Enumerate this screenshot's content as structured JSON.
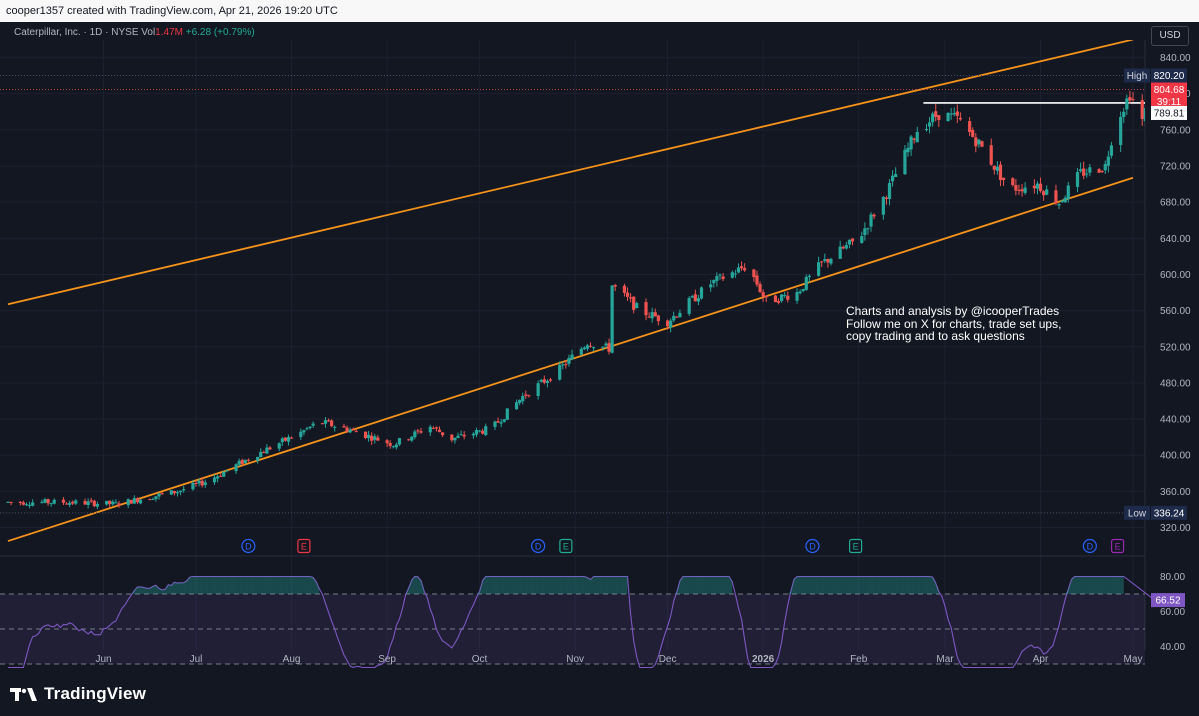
{
  "header": {
    "caption": "cooper1357 created with TradingView.com, Apr 21, 2026 19:20 UTC"
  },
  "legend": {
    "symbol": "Caterpillar, Inc. · 1D · NYSE",
    "vol_label": "Vol",
    "vol_value": "1.47M",
    "change": "+6.28 (+0.79%)"
  },
  "currency_button": "USD",
  "annotation": {
    "line1": "Charts and analysis by @icooperTrades",
    "line2": "Follow me on X for charts, trade set ups,",
    "line3": "copy trading and to ask questions"
  },
  "footer": {
    "brand": "TradingView"
  },
  "colors": {
    "up": "#26a69a",
    "down": "#ef5350",
    "channel": "#f7931a",
    "rsi": "#7e57c2",
    "background": "#131722"
  },
  "chart_data": {
    "type": "candlestick",
    "symbol": "Caterpillar, Inc.",
    "interval": "1D",
    "exchange": "NYSE",
    "y_ticks": [
      320,
      360,
      400,
      440,
      480,
      520,
      560,
      600,
      640,
      680,
      720,
      760,
      800,
      840
    ],
    "y_tick_labels": [
      "320.00",
      "360.00",
      "400.00",
      "440.00",
      "480.00",
      "520.00",
      "560.00",
      "600.00",
      "640.00",
      "680.00",
      "720.00",
      "760.00",
      "800.00",
      "840.00"
    ],
    "x_labels": [
      "Jun",
      "Jul",
      "Aug",
      "Sep",
      "Oct",
      "Nov",
      "Dec",
      "2026",
      "Feb",
      "Mar",
      "Apr",
      "May"
    ],
    "price_labels": [
      {
        "label": "High",
        "value": "820.20",
        "price": 820.2
      },
      {
        "label": "",
        "value": "804.68",
        "price": 804.68,
        "sub": "39:11"
      },
      {
        "label": "",
        "value": "789.81",
        "price": 789.81
      },
      {
        "label": "Low",
        "value": "336.24",
        "price": 336.24
      }
    ],
    "horizontal_line": 789.81,
    "channel": {
      "upper": [
        [
          "2025-05-01",
          567
        ],
        [
          "2026-05-01",
          860
        ]
      ],
      "lower": [
        [
          "2025-05-01",
          305
        ],
        [
          "2026-05-01",
          707
        ]
      ]
    },
    "events": [
      {
        "type": "D",
        "date": "2025-07-18"
      },
      {
        "type": "E",
        "date": "2025-08-05"
      },
      {
        "type": "D",
        "date": "2025-10-20"
      },
      {
        "type": "E",
        "date": "2025-10-29"
      },
      {
        "type": "D",
        "date": "2026-01-17"
      },
      {
        "type": "E",
        "date": "2026-01-31"
      },
      {
        "type": "D",
        "date": "2026-04-17"
      },
      {
        "type": "E",
        "date": "2026-04-26"
      }
    ],
    "anchors": [
      [
        "2025-05-01",
        348
      ],
      [
        "2025-05-20",
        348
      ],
      [
        "2025-06-05",
        346
      ],
      [
        "2025-06-25",
        360
      ],
      [
        "2025-07-05",
        372
      ],
      [
        "2025-07-20",
        400
      ],
      [
        "2025-08-04",
        425
      ],
      [
        "2025-08-10",
        437
      ],
      [
        "2025-08-20",
        428
      ],
      [
        "2025-09-03",
        412
      ],
      [
        "2025-09-15",
        432
      ],
      [
        "2025-09-22",
        418
      ],
      [
        "2025-10-05",
        430
      ],
      [
        "2025-10-15",
        465
      ],
      [
        "2025-10-26",
        492
      ],
      [
        "2025-11-05",
        525
      ],
      [
        "2025-11-12",
        518
      ],
      [
        "2025-11-13",
        588
      ],
      [
        "2025-11-22",
        560
      ],
      [
        "2025-12-01",
        548
      ],
      [
        "2025-12-15",
        590
      ],
      [
        "2025-12-27",
        610
      ],
      [
        "2026-01-02",
        570
      ],
      [
        "2026-01-12",
        580
      ],
      [
        "2026-01-20",
        612
      ],
      [
        "2026-02-01",
        640
      ],
      [
        "2026-02-10",
        690
      ],
      [
        "2026-02-20",
        760
      ],
      [
        "2026-02-27",
        778
      ],
      [
        "2026-03-05",
        772
      ],
      [
        "2026-03-12",
        745
      ],
      [
        "2026-03-22",
        695
      ],
      [
        "2026-03-31",
        700
      ],
      [
        "2026-04-07",
        680
      ],
      [
        "2026-04-14",
        712
      ],
      [
        "2026-04-22",
        720
      ],
      [
        "2026-04-25",
        765
      ],
      [
        "2026-04-30",
        800
      ],
      [
        "2026-05-04",
        770
      ],
      [
        "2026-05-08",
        808
      ]
    ],
    "rsi": {
      "current": 66.52,
      "current_label": "66.52",
      "levels": [
        70,
        50,
        30
      ],
      "y_tick_labels": [
        "80.00",
        "60.00",
        "40.00"
      ],
      "y_ticks": [
        80,
        60,
        40
      ]
    }
  }
}
